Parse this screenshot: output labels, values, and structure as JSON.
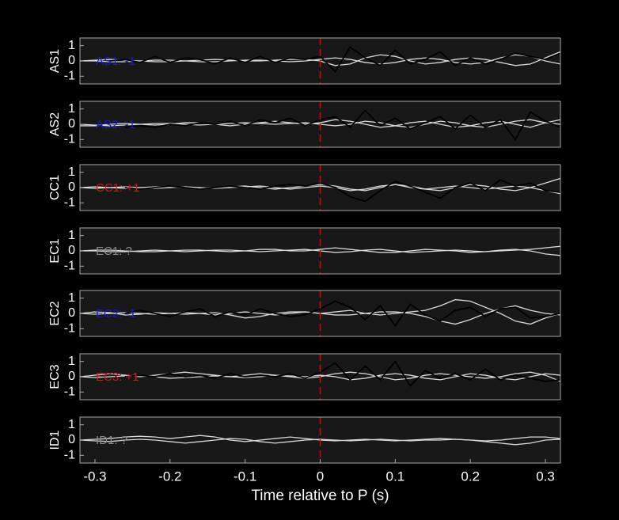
{
  "chart_data": [
    {
      "type": "line",
      "ylabel": "AS1",
      "annotation": "AS1: -1",
      "annotation_color": "#1a1acc",
      "x": [
        -0.32,
        -0.3,
        -0.28,
        -0.26,
        -0.24,
        -0.22,
        -0.2,
        -0.18,
        -0.16,
        -0.14,
        -0.12,
        -0.1,
        -0.08,
        -0.06,
        -0.04,
        -0.02,
        0,
        0.02,
        0.04,
        0.06,
        0.08,
        0.1,
        0.12,
        0.14,
        0.16,
        0.18,
        0.2,
        0.22,
        0.24,
        0.26,
        0.28,
        0.3,
        0.32
      ],
      "series": [
        {
          "color": "#d9d9d9",
          "values": [
            0,
            0.05,
            0.1,
            0.05,
            0,
            -0.05,
            -0.05,
            0,
            0.05,
            0.1,
            0.05,
            0,
            0,
            0.05,
            0.1,
            0.1,
            0,
            -0.3,
            -0.2,
            0.2,
            0.4,
            0.3,
            0,
            -0.2,
            -0.1,
            0.1,
            0.2,
            0.1,
            -0.1,
            -0.3,
            -0.2,
            0.2,
            0.6
          ]
        },
        {
          "color": "#d9d9d9",
          "values": [
            0,
            0,
            -0.05,
            -0.05,
            0,
            0.05,
            0.05,
            0,
            -0.05,
            -0.05,
            0,
            0.05,
            0.05,
            0,
            -0.05,
            0,
            0.1,
            0.2,
            0.1,
            -0.1,
            -0.2,
            -0.1,
            0.1,
            0.2,
            0.1,
            -0.1,
            -0.2,
            -0.1,
            0.2,
            0.4,
            0.3,
            0,
            -0.2
          ]
        },
        {
          "color": "#000000",
          "values": [
            null,
            null,
            0,
            0.1,
            -0.1,
            0.3,
            -0.1,
            0.2,
            0.1,
            -0.2,
            0.2,
            -0.1,
            0.3,
            -0.1,
            0.2,
            0.1,
            0.3,
            -0.7,
            0.9,
            0.2,
            -0.3,
            0.7,
            -0.2,
            0.1,
            0.6,
            -0.3,
            0.2,
            -0.2,
            0.1,
            0.5,
            0.3,
            0.1,
            0.5
          ]
        }
      ],
      "vline": {
        "x": 0,
        "color": "#e00000"
      },
      "xlim": [
        -0.32,
        0.32
      ],
      "ylim": [
        -1.5,
        1.5
      ],
      "yticks": [
        -1,
        0,
        1
      ]
    },
    {
      "type": "line",
      "ylabel": "AS2",
      "annotation": "AS2: -1",
      "annotation_color": "#1a1acc",
      "x": [
        -0.32,
        -0.3,
        -0.28,
        -0.26,
        -0.24,
        -0.22,
        -0.2,
        -0.18,
        -0.16,
        -0.14,
        -0.12,
        -0.1,
        -0.08,
        -0.06,
        -0.04,
        -0.02,
        0,
        0.02,
        0.04,
        0.06,
        0.08,
        0.1,
        0.12,
        0.14,
        0.16,
        0.18,
        0.2,
        0.22,
        0.24,
        0.26,
        0.28,
        0.3,
        0.32
      ],
      "series": [
        {
          "color": "#d9d9d9",
          "values": [
            -0.1,
            -0.1,
            0,
            0.05,
            0,
            -0.05,
            0,
            0.1,
            0.1,
            0,
            -0.1,
            0,
            0.1,
            0.2,
            0.1,
            0,
            0.1,
            0.3,
            0.2,
            0,
            -0.2,
            -0.1,
            0.1,
            0.2,
            0,
            -0.2,
            -0.1,
            0.1,
            0.2,
            0,
            -0.2,
            0.1,
            0.3
          ]
        },
        {
          "color": "#d9d9d9",
          "values": [
            0,
            -0.05,
            -0.1,
            -0.05,
            0,
            0.05,
            0.05,
            0,
            -0.05,
            0,
            0.05,
            0.1,
            0.05,
            0,
            0.05,
            0.1,
            0,
            -0.1,
            0,
            0.2,
            0.1,
            -0.1,
            -0.2,
            0,
            0.2,
            0.1,
            -0.1,
            -0.2,
            0,
            0.2,
            0.3,
            0.1,
            0
          ]
        },
        {
          "color": "#000000",
          "values": [
            null,
            null,
            null,
            -0.2,
            -0.1,
            -0.2,
            0,
            -0.1,
            0.1,
            0,
            0.2,
            -0.1,
            0.3,
            0.1,
            0.4,
            -0.1,
            0.3,
            0.5,
            -0.2,
            0.9,
            -0.1,
            0.4,
            -0.3,
            0.1,
            0.5,
            -0.3,
            0.6,
            -0.2,
            0.3,
            -1.0,
            0.8,
            0.2,
            -0.2
          ]
        }
      ],
      "vline": {
        "x": 0,
        "color": "#e00000"
      },
      "xlim": [
        -0.32,
        0.32
      ],
      "ylim": [
        -1.5,
        1.5
      ],
      "yticks": [
        -1,
        0,
        1
      ]
    },
    {
      "type": "line",
      "ylabel": "CC1",
      "annotation": "CC1: +1",
      "annotation_color": "#cc1a1a",
      "x": [
        -0.32,
        -0.3,
        -0.28,
        -0.26,
        -0.24,
        -0.22,
        -0.2,
        -0.18,
        -0.16,
        -0.14,
        -0.12,
        -0.1,
        -0.08,
        -0.06,
        -0.04,
        -0.02,
        0,
        0.02,
        0.04,
        0.06,
        0.08,
        0.1,
        0.12,
        0.14,
        0.16,
        0.18,
        0.2,
        0.22,
        0.24,
        0.26,
        0.28,
        0.3,
        0.32
      ],
      "series": [
        {
          "color": "#d9d9d9",
          "values": [
            0,
            0.05,
            0,
            -0.05,
            0,
            0.05,
            0.05,
            0,
            -0.05,
            0,
            0.05,
            0.1,
            0,
            -0.1,
            0,
            0.1,
            0.2,
            0.1,
            -0.1,
            -0.2,
            0,
            0.2,
            0.1,
            -0.1,
            -0.2,
            0,
            0.2,
            0.1,
            -0.1,
            -0.2,
            0,
            0.3,
            0.6
          ]
        },
        {
          "color": "#d9d9d9",
          "values": [
            0,
            -0.05,
            0,
            0.05,
            0,
            -0.05,
            0,
            0.05,
            0,
            -0.05,
            0,
            0.05,
            0.1,
            0,
            -0.1,
            0,
            0.1,
            0,
            -0.2,
            -0.1,
            0.1,
            0.2,
            0,
            -0.1,
            0,
            0.1,
            0,
            -0.1,
            0,
            0.1,
            0,
            -0.2,
            -0.4
          ]
        },
        {
          "color": "#000000",
          "values": [
            null,
            null,
            null,
            0,
            -0.1,
            0,
            0.1,
            0,
            -0.1,
            0,
            0.1,
            0,
            -0.1,
            0.1,
            0.2,
            0.1,
            0.3,
            0,
            -0.6,
            -0.9,
            -0.2,
            0.4,
            0.1,
            -0.3,
            -0.7,
            0,
            0.3,
            -0.2,
            0.5,
            0.1,
            0.3,
            -0.2,
            -0.3
          ]
        }
      ],
      "vline": {
        "x": 0,
        "color": "#e00000"
      },
      "xlim": [
        -0.32,
        0.32
      ],
      "ylim": [
        -1.5,
        1.5
      ],
      "yticks": [
        -1,
        0,
        1
      ]
    },
    {
      "type": "line",
      "ylabel": "EC1",
      "annotation": "EC1: ?",
      "annotation_color": "#8c8c8c",
      "x": [
        -0.32,
        -0.3,
        -0.28,
        -0.26,
        -0.24,
        -0.22,
        -0.2,
        -0.18,
        -0.16,
        -0.14,
        -0.12,
        -0.1,
        -0.08,
        -0.06,
        -0.04,
        -0.02,
        0,
        0.02,
        0.04,
        0.06,
        0.08,
        0.1,
        0.12,
        0.14,
        0.16,
        0.18,
        0.2,
        0.22,
        0.24,
        0.26,
        0.28,
        0.3,
        0.32
      ],
      "series": [
        {
          "color": "#d9d9d9",
          "values": [
            0,
            0.05,
            0.05,
            0,
            -0.05,
            -0.05,
            0,
            0.05,
            0.05,
            0,
            -0.05,
            0,
            0.1,
            0.1,
            0,
            0,
            0.1,
            0.2,
            0.1,
            0,
            -0.1,
            -0.1,
            0,
            0.1,
            0.05,
            0,
            -0.1,
            -0.05,
            0.05,
            0.1,
            0,
            -0.2,
            -0.3
          ]
        },
        {
          "color": "#d9d9d9",
          "values": [
            0,
            0,
            -0.05,
            -0.05,
            0,
            0.05,
            0,
            -0.05,
            0,
            0.05,
            0.05,
            0,
            -0.05,
            0,
            0.05,
            0.1,
            0,
            -0.1,
            -0.05,
            0.05,
            0.1,
            0,
            -0.1,
            -0.05,
            0,
            0.05,
            0,
            -0.05,
            0,
            0.05,
            0.1,
            0.2,
            0.3
          ]
        }
      ],
      "vline": {
        "x": 0,
        "color": "#e00000"
      },
      "xlim": [
        -0.32,
        0.32
      ],
      "ylim": [
        -1.5,
        1.5
      ],
      "yticks": [
        -1,
        0,
        1
      ]
    },
    {
      "type": "line",
      "ylabel": "EC2",
      "annotation": "EC2: -1",
      "annotation_color": "#1a1acc",
      "x": [
        -0.32,
        -0.3,
        -0.28,
        -0.26,
        -0.24,
        -0.22,
        -0.2,
        -0.18,
        -0.16,
        -0.14,
        -0.12,
        -0.1,
        -0.08,
        -0.06,
        -0.04,
        -0.02,
        0,
        0.02,
        0.04,
        0.06,
        0.08,
        0.1,
        0.12,
        0.14,
        0.16,
        0.18,
        0.2,
        0.22,
        0.24,
        0.26,
        0.28,
        0.3,
        0.32
      ],
      "series": [
        {
          "color": "#d9d9d9",
          "values": [
            0,
            0.1,
            0.05,
            -0.1,
            -0.05,
            0.05,
            0,
            -0.05,
            0,
            0.05,
            -0.1,
            -0.3,
            -0.2,
            0,
            0.1,
            0.1,
            0,
            0.1,
            0.2,
            0,
            -0.1,
            0,
            0.1,
            0.2,
            0.5,
            0.9,
            0.8,
            0.4,
            0,
            -0.5,
            -0.7,
            -0.3,
            0
          ]
        },
        {
          "color": "#d9d9d9",
          "values": [
            0,
            -0.05,
            0,
            0.05,
            0,
            -0.05,
            0,
            0.05,
            0,
            -0.1,
            0,
            0.1,
            0,
            -0.1,
            0,
            0.1,
            0,
            -0.1,
            -0.1,
            0,
            0.1,
            0.1,
            0,
            -0.2,
            -0.5,
            -0.7,
            -0.4,
            0,
            0.3,
            0.5,
            0.2,
            0,
            -0.1
          ]
        },
        {
          "color": "#000000",
          "values": [
            null,
            null,
            null,
            0,
            0.2,
            0,
            -0.2,
            0.1,
            0.3,
            -0.2,
            0.1,
            -0.1,
            0.3,
            0,
            -0.2,
            -0.1,
            0.3,
            0.8,
            0.4,
            -0.4,
            0.5,
            -0.8,
            0.6,
            -0.1,
            -0.5,
            0.2,
            0.4,
            -0.2,
            0.3,
            0.4,
            -0.3,
            -0.2,
            0
          ]
        }
      ],
      "vline": {
        "x": 0,
        "color": "#e00000"
      },
      "xlim": [
        -0.32,
        0.32
      ],
      "ylim": [
        -1.5,
        1.5
      ],
      "yticks": [
        -1,
        0,
        1
      ]
    },
    {
      "type": "line",
      "ylabel": "EC3",
      "annotation": "EC3: +1",
      "annotation_color": "#cc1a1a",
      "x": [
        -0.32,
        -0.3,
        -0.28,
        -0.26,
        -0.24,
        -0.22,
        -0.2,
        -0.18,
        -0.16,
        -0.14,
        -0.12,
        -0.1,
        -0.08,
        -0.06,
        -0.04,
        -0.02,
        0,
        0.02,
        0.04,
        0.06,
        0.08,
        0.1,
        0.12,
        0.14,
        0.16,
        0.18,
        0.2,
        0.22,
        0.24,
        0.26,
        0.28,
        0.3,
        0.32
      ],
      "series": [
        {
          "color": "#d9d9d9",
          "values": [
            0,
            0.1,
            0.2,
            0.1,
            0,
            0.1,
            0.2,
            0.3,
            0.2,
            0.1,
            0,
            0.1,
            0.2,
            0.1,
            0,
            -0.1,
            0,
            0.2,
            0.3,
            0.2,
            0,
            -0.2,
            -0.1,
            0.1,
            0.2,
            0.1,
            0,
            -0.1,
            0,
            0.2,
            0.3,
            0.1,
            -0.3
          ]
        },
        {
          "color": "#d9d9d9",
          "values": [
            0,
            -0.05,
            0,
            0.05,
            0.1,
            0,
            -0.1,
            -0.05,
            0,
            0.05,
            0,
            -0.05,
            0,
            0.1,
            0.05,
            0,
            0.1,
            0,
            -0.2,
            -0.1,
            0.1,
            0.2,
            0.1,
            -0.1,
            -0.2,
            0,
            0.2,
            0.1,
            -0.1,
            -0.2,
            0,
            0.2,
            0.1
          ]
        },
        {
          "color": "#000000",
          "values": [
            null,
            null,
            null,
            0,
            0.1,
            0,
            0.2,
            0,
            0.1,
            -0.1,
            0.2,
            0,
            0.1,
            0,
            0.2,
            -0.1,
            0.3,
            0.9,
            -0.2,
            0.7,
            -0.2,
            1.0,
            -0.6,
            0.4,
            -0.1,
            0.2,
            -0.2,
            0.5,
            -0.2,
            0.1,
            -0.1,
            -0.3,
            -0.2
          ]
        }
      ],
      "vline": {
        "x": 0,
        "color": "#e00000"
      },
      "xlim": [
        -0.32,
        0.32
      ],
      "ylim": [
        -1.5,
        1.5
      ],
      "yticks": [
        -1,
        0,
        1
      ]
    },
    {
      "type": "line",
      "ylabel": "ID1",
      "annotation": "ID1: ?",
      "annotation_color": "#8c8c8c",
      "x": [
        -0.32,
        -0.3,
        -0.28,
        -0.26,
        -0.24,
        -0.22,
        -0.2,
        -0.18,
        -0.16,
        -0.14,
        -0.12,
        -0.1,
        -0.08,
        -0.06,
        -0.04,
        -0.02,
        0,
        0.02,
        0.04,
        0.06,
        0.08,
        0.1,
        0.12,
        0.14,
        0.16,
        0.18,
        0.2,
        0.22,
        0.24,
        0.26,
        0.28,
        0.3,
        0.32
      ],
      "series": [
        {
          "color": "#d9d9d9",
          "values": [
            0,
            0.05,
            0.1,
            0.2,
            0.25,
            0.2,
            0.1,
            0.2,
            0.3,
            0.2,
            0,
            -0.1,
            0,
            0.1,
            0.2,
            0.1,
            0,
            -0.05,
            0,
            0.05,
            0,
            -0.05,
            0,
            0.05,
            0.1,
            0.05,
            0,
            -0.05,
            0,
            0.1,
            0.2,
            0.2,
            0.1
          ]
        },
        {
          "color": "#d9d9d9",
          "values": [
            0,
            -0.05,
            -0.1,
            0,
            0.05,
            0,
            -0.1,
            -0.2,
            -0.1,
            0,
            0.1,
            0.05,
            -0.1,
            -0.2,
            -0.1,
            0,
            0.05,
            0,
            -0.05,
            0,
            0.05,
            0,
            -0.05,
            0,
            0,
            0.05,
            0,
            -0.1,
            -0.2,
            -0.3,
            -0.2,
            0,
            0.05
          ]
        }
      ],
      "vline": {
        "x": 0,
        "color": "#e00000"
      },
      "xlim": [
        -0.32,
        0.32
      ],
      "ylim": [
        -1.5,
        1.5
      ],
      "yticks": [
        -1,
        0,
        1
      ],
      "xticks": [
        -0.3,
        -0.2,
        -0.1,
        0,
        0.1,
        0.2,
        0.3
      ],
      "xlabel": "Time relative to P (s)"
    }
  ]
}
